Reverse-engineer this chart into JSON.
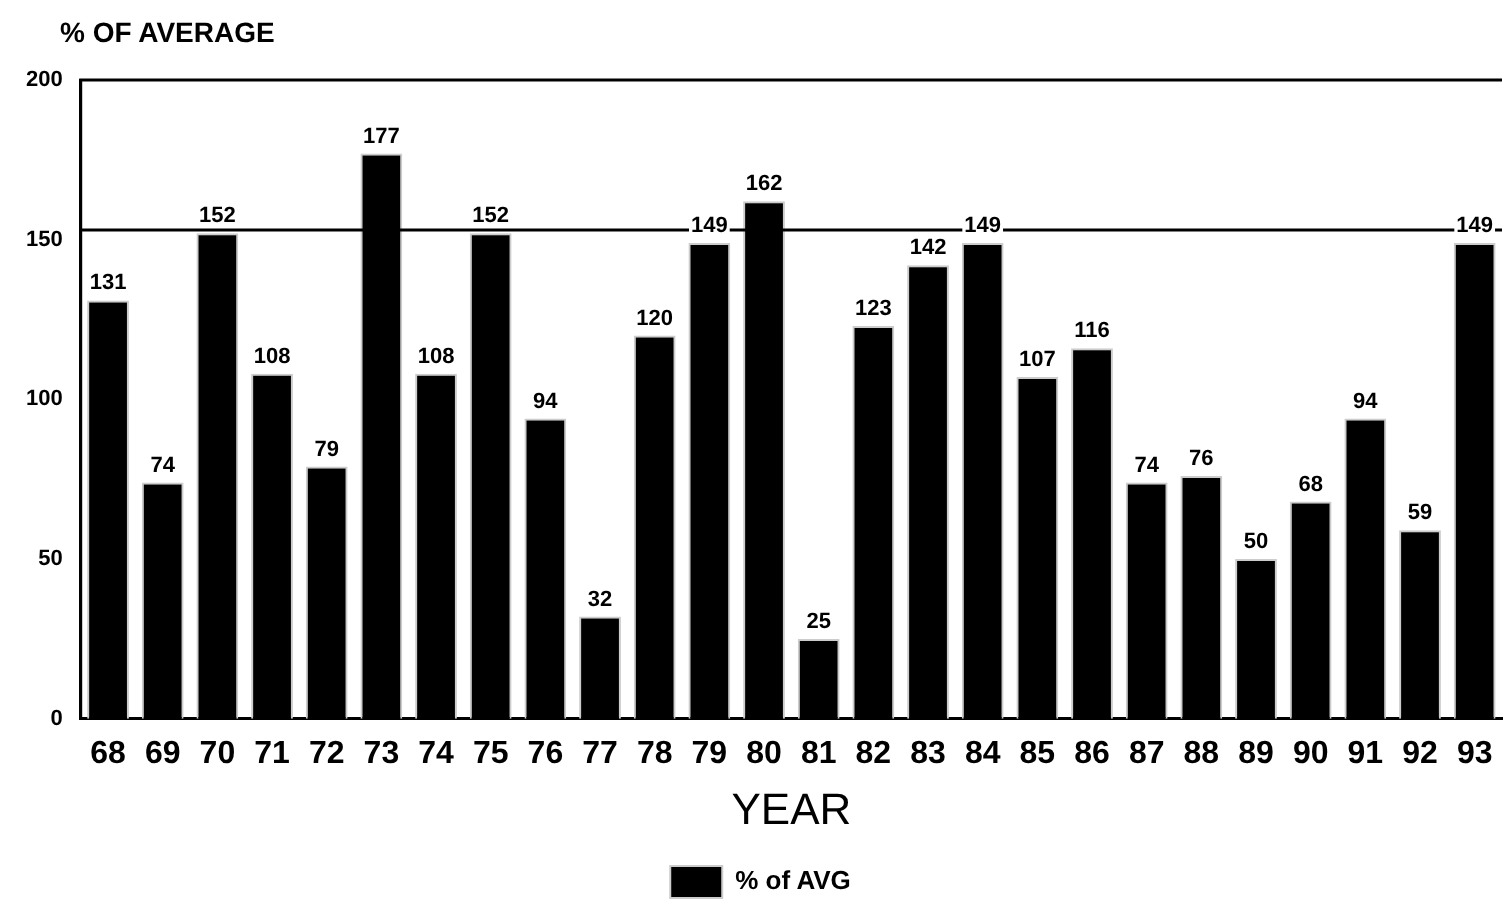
{
  "chart_data": {
    "type": "bar",
    "ylabel": "% OF AVERAGE",
    "xlabel": "YEAR",
    "categories": [
      "68",
      "69",
      "70",
      "71",
      "72",
      "73",
      "74",
      "75",
      "76",
      "77",
      "78",
      "79",
      "80",
      "81",
      "82",
      "83",
      "84",
      "85",
      "86",
      "87",
      "88",
      "89",
      "90",
      "91",
      "92",
      "93"
    ],
    "series": [
      {
        "name": "% of AVG",
        "color": "#000000",
        "values": [
          131,
          74,
          152,
          108,
          79,
          177,
          108,
          152,
          94,
          32,
          120,
          149,
          162,
          25,
          123,
          142,
          149,
          107,
          116,
          74,
          76,
          50,
          68,
          94,
          59,
          149
        ]
      }
    ],
    "ylim": [
      0,
      200
    ],
    "yticks": [
      0,
      50,
      100,
      150,
      200
    ],
    "grid": false,
    "legend": "bottom",
    "data_labels": true,
    "ref_lines": [
      {
        "axis": "y",
        "value": 153,
        "color": "#000000",
        "line_style": "solid"
      }
    ]
  }
}
